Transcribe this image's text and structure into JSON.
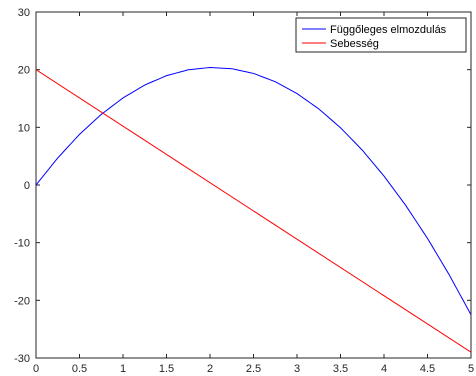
{
  "chart_data": {
    "type": "line",
    "title": "",
    "xlabel": "",
    "ylabel": "",
    "xlim": [
      0,
      5
    ],
    "ylim": [
      -30,
      30
    ],
    "xticks": [
      0,
      0.5,
      1,
      1.5,
      2,
      2.5,
      3,
      3.5,
      4,
      4.5,
      5
    ],
    "xtick_labels": [
      "0",
      "0.5",
      "1",
      "1.5",
      "2",
      "2.5",
      "3",
      "3.5",
      "4",
      "4.5",
      "5"
    ],
    "yticks": [
      -30,
      -20,
      -10,
      0,
      10,
      20,
      30
    ],
    "ytick_labels": [
      "-30",
      "-20",
      "-10",
      "0",
      "10",
      "20",
      "30"
    ],
    "grid": false,
    "legend_position": "top-right",
    "series": [
      {
        "name": "Függőleges elmozdulás",
        "color": "#0000ff",
        "x": [
          0,
          0.25,
          0.5,
          0.75,
          1,
          1.25,
          1.5,
          1.75,
          2,
          2.25,
          2.5,
          2.75,
          3,
          3.25,
          3.5,
          3.75,
          4,
          4.25,
          4.5,
          4.75,
          5
        ],
        "y": [
          0,
          4.69,
          8.78,
          12.24,
          15.1,
          17.34,
          18.96,
          19.98,
          20.38,
          20.17,
          19.35,
          17.91,
          15.86,
          13.2,
          9.93,
          6.05,
          1.55,
          -3.55,
          -9.26,
          -15.58,
          -22.5
        ]
      },
      {
        "name": "Sebesség",
        "color": "#ff0000",
        "x": [
          0,
          5
        ],
        "y": [
          20,
          -29
        ]
      }
    ]
  }
}
